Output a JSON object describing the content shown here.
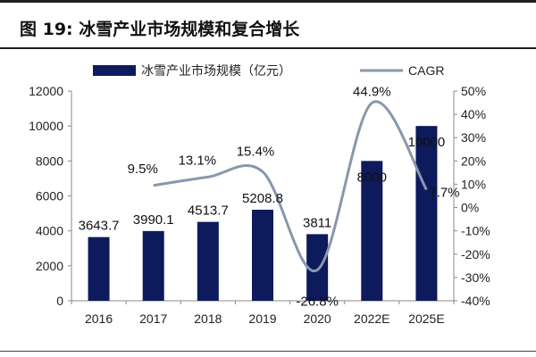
{
  "figure": {
    "title": "图 19:  冰雪产业市场规模和复合增长"
  },
  "chart_data": {
    "type": "bar",
    "categories": [
      "2016",
      "2017",
      "2018",
      "2019",
      "2020",
      "2022E",
      "2025E"
    ],
    "series": [
      {
        "name": "冰雪产业市场规模（亿元）",
        "type": "bar",
        "axis": "left",
        "color": "#0d1a5c",
        "values": [
          3643.7,
          3990.1,
          4513.7,
          5208.8,
          3811,
          8000,
          10000
        ],
        "labels": [
          "3643.7",
          "3990.1",
          "4513.7",
          "5208.8",
          "3811",
          "8000",
          "10000"
        ]
      },
      {
        "name": "CAGR",
        "type": "line",
        "axis": "right",
        "color": "#8898ab",
        "values": [
          null,
          9.5,
          13.1,
          15.4,
          -26.8,
          44.9,
          7.7
        ],
        "labels": [
          null,
          "9.5%",
          "13.1%",
          "15.4%",
          "-26.8%",
          "44.9%",
          "7.7%"
        ]
      }
    ],
    "y_left": {
      "range": [
        0,
        12000
      ],
      "ticks": [
        "0",
        "2000",
        "4000",
        "6000",
        "8000",
        "10000",
        "12000"
      ]
    },
    "y_right": {
      "range": [
        -40,
        50
      ],
      "ticks": [
        "-40%",
        "-30%",
        "-20%",
        "-10%",
        "0%",
        "10%",
        "20%",
        "30%",
        "40%",
        "50%"
      ]
    },
    "legend_position": "top",
    "grid": false
  }
}
